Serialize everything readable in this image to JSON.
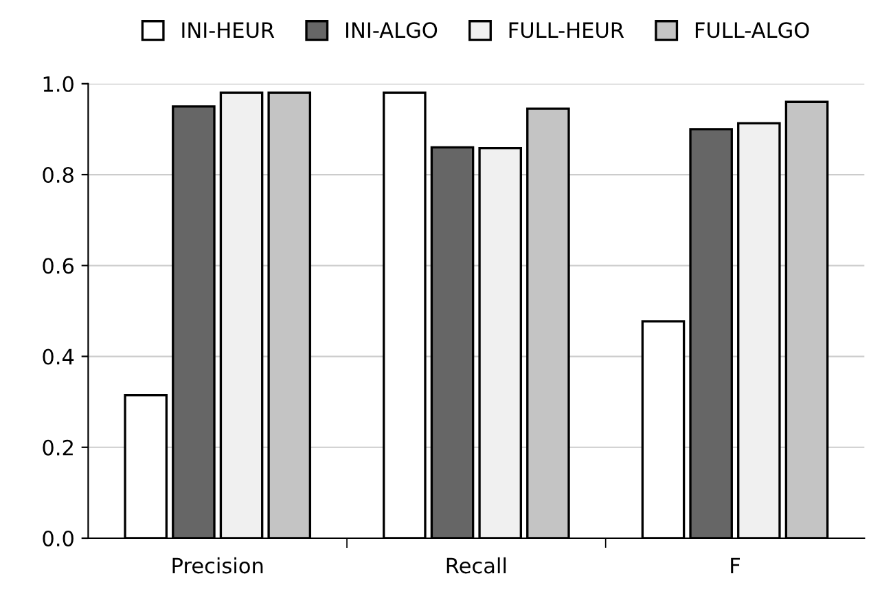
{
  "chart_data": {
    "type": "bar",
    "categories": [
      "Precision",
      "Recall",
      "F"
    ],
    "series": [
      {
        "name": "INI-HEUR",
        "color": "#ffffff",
        "values": [
          0.315,
          0.98,
          0.477
        ]
      },
      {
        "name": "INI-ALGO",
        "color": "#666666",
        "values": [
          0.95,
          0.86,
          0.9
        ]
      },
      {
        "name": "FULL-HEUR",
        "color": "#f0f0f0",
        "values": [
          0.98,
          0.858,
          0.913
        ]
      },
      {
        "name": "FULL-ALGO",
        "color": "#c4c4c4",
        "values": [
          0.98,
          0.945,
          0.96
        ]
      }
    ],
    "ylim": [
      0,
      1.0
    ],
    "yticks": [
      {
        "value": 0,
        "label": "0.0"
      },
      0.2,
      0.4,
      0.6,
      0.8,
      {
        "value": 1.0,
        "label": "1.0"
      }
    ],
    "grid": "y",
    "legend": "top"
  }
}
